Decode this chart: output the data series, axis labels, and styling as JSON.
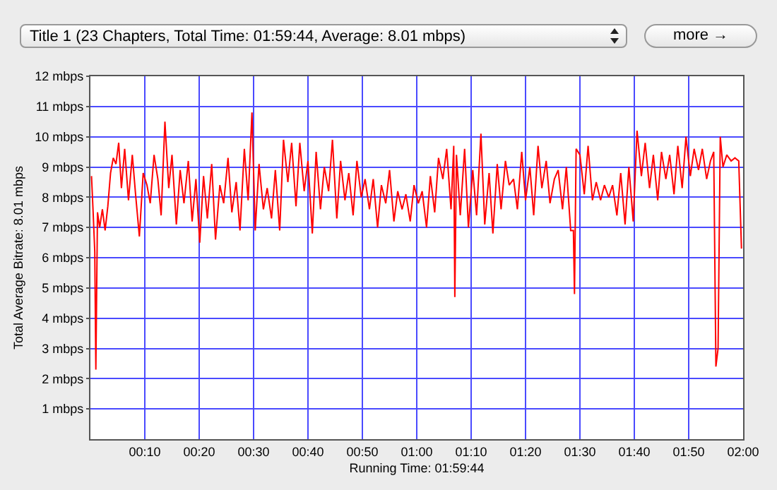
{
  "chart_data": {
    "type": "line",
    "title": "Title 1 (23 Chapters, Total Time: 01:59:44, Average: 8.01 mbps)",
    "annotations": [
      "more →"
    ],
    "xlabel": "Running Time: 01:59:44",
    "ylabel": "Total Average Bitrate: 8.01 mbps",
    "xlim": [
      0,
      120
    ],
    "ylim": [
      0,
      12
    ],
    "xticks": [
      {
        "value": 10,
        "label": "00:10"
      },
      {
        "value": 20,
        "label": "00:20"
      },
      {
        "value": 30,
        "label": "00:30"
      },
      {
        "value": 40,
        "label": "00:40"
      },
      {
        "value": 50,
        "label": "00:50"
      },
      {
        "value": 60,
        "label": "01:00"
      },
      {
        "value": 70,
        "label": "01:10"
      },
      {
        "value": 80,
        "label": "01:20"
      },
      {
        "value": 90,
        "label": "01:30"
      },
      {
        "value": 100,
        "label": "01:40"
      },
      {
        "value": 110,
        "label": "01:50"
      },
      {
        "value": 120,
        "label": "02:00"
      }
    ],
    "yticks": [
      {
        "value": 1,
        "label": "1 mbps"
      },
      {
        "value": 2,
        "label": "2 mbps"
      },
      {
        "value": 3,
        "label": "3 mbps"
      },
      {
        "value": 4,
        "label": "4 mbps"
      },
      {
        "value": 5,
        "label": "5 mbps"
      },
      {
        "value": 6,
        "label": "6 mbps"
      },
      {
        "value": 7,
        "label": "7 mbps"
      },
      {
        "value": 8,
        "label": "8 mbps"
      },
      {
        "value": 9,
        "label": "9 mbps"
      },
      {
        "value": 10,
        "label": "10 mbps"
      },
      {
        "value": 11,
        "label": "11 mbps"
      },
      {
        "value": 12,
        "label": "12 mbps"
      }
    ],
    "grid": true,
    "marker": "none",
    "line_style": "solid",
    "series": [
      {
        "color": "#ff0000",
        "x": [
          0.2,
          0.5,
          0.8,
          1.0,
          1.3,
          1.7,
          2.2,
          2.7,
          3.2,
          3.7,
          4.2,
          4.7,
          5.2,
          5.7,
          6.3,
          7.0,
          7.7,
          8.3,
          9.0,
          9.7,
          10.4,
          11.0,
          11.7,
          12.4,
          13.0,
          13.7,
          14.4,
          15.0,
          15.8,
          16.5,
          17.2,
          18.0,
          18.7,
          19.4,
          20.1,
          20.8,
          21.5,
          22.3,
          23.0,
          23.8,
          24.5,
          25.3,
          26.0,
          26.8,
          27.5,
          28.3,
          29.0,
          29.7,
          30.3,
          31.0,
          31.8,
          32.5,
          33.3,
          34.0,
          34.8,
          35.5,
          36.3,
          37.0,
          37.8,
          38.5,
          39.3,
          40.0,
          40.8,
          41.5,
          42.3,
          43.0,
          43.8,
          44.5,
          45.3,
          46.0,
          46.8,
          47.5,
          48.3,
          49.0,
          49.8,
          50.5,
          51.3,
          52.0,
          52.8,
          53.5,
          54.3,
          55.0,
          55.8,
          56.5,
          57.3,
          58.0,
          58.8,
          59.5,
          60.3,
          61.0,
          61.8,
          62.5,
          63.3,
          64.0,
          64.8,
          65.5,
          66.3,
          66.8,
          67.0,
          67.3,
          68.0,
          68.8,
          69.5,
          70.3,
          71.0,
          71.8,
          72.5,
          73.3,
          74.0,
          74.8,
          75.5,
          76.3,
          77.0,
          77.8,
          78.5,
          79.3,
          80.0,
          80.8,
          81.5,
          82.3,
          83.0,
          83.8,
          84.5,
          85.3,
          86.0,
          86.8,
          87.5,
          88.3,
          88.8,
          89.0,
          89.3,
          90.0,
          90.8,
          91.5,
          92.3,
          93.0,
          93.8,
          94.5,
          95.3,
          96.0,
          96.8,
          97.5,
          98.3,
          99.0,
          99.8,
          100.5,
          101.3,
          102.0,
          102.8,
          103.5,
          104.3,
          105.0,
          105.8,
          106.5,
          107.3,
          108.0,
          108.8,
          109.5,
          110.3,
          111.0,
          111.8,
          112.5,
          113.3,
          114.0,
          114.6,
          115.0,
          115.4,
          115.8,
          116.3,
          117.0,
          117.8,
          118.5,
          119.2,
          119.7
        ],
        "values": [
          8.7,
          7.5,
          6.2,
          2.3,
          7.5,
          7.0,
          7.6,
          6.9,
          7.7,
          8.8,
          9.3,
          9.1,
          9.8,
          8.3,
          9.6,
          7.9,
          9.4,
          8.1,
          6.7,
          8.8,
          8.4,
          7.8,
          9.4,
          8.6,
          7.4,
          10.5,
          8.3,
          9.4,
          7.1,
          8.9,
          7.8,
          9.2,
          7.2,
          8.6,
          6.5,
          8.7,
          7.3,
          9.1,
          6.6,
          8.4,
          7.8,
          9.3,
          7.5,
          8.5,
          6.9,
          9.6,
          7.9,
          10.8,
          6.9,
          9.1,
          7.6,
          8.3,
          7.3,
          8.9,
          6.9,
          9.9,
          8.5,
          9.8,
          7.7,
          9.8,
          8.2,
          9.2,
          6.8,
          9.5,
          7.6,
          9.0,
          8.2,
          9.9,
          7.3,
          9.2,
          7.9,
          8.8,
          7.4,
          9.2,
          8.0,
          8.6,
          7.6,
          8.6,
          7.0,
          8.4,
          7.8,
          8.9,
          7.2,
          8.2,
          7.6,
          8.1,
          7.2,
          8.4,
          7.8,
          8.2,
          7.0,
          8.7,
          7.5,
          9.3,
          8.6,
          9.6,
          7.6,
          9.7,
          4.7,
          9.4,
          7.4,
          9.6,
          7.0,
          8.9,
          7.4,
          10.1,
          7.1,
          8.8,
          6.8,
          9.1,
          7.6,
          9.2,
          8.4,
          8.6,
          7.6,
          9.5,
          7.9,
          9.0,
          7.4,
          9.7,
          8.3,
          9.2,
          7.8,
          8.6,
          8.9,
          7.6,
          9.0,
          6.9,
          6.9,
          4.8,
          9.6,
          9.4,
          8.1,
          9.7,
          7.9,
          8.5,
          7.9,
          8.4,
          8.0,
          8.4,
          7.4,
          8.8,
          7.1,
          9.0,
          7.2,
          10.2,
          8.7,
          9.8,
          8.3,
          9.4,
          7.9,
          9.5,
          8.6,
          9.4,
          8.1,
          9.7,
          8.3,
          10.0,
          8.7,
          9.6,
          8.9,
          9.6,
          8.6,
          9.2,
          9.5,
          2.4,
          3.0,
          10.0,
          9.0,
          9.4,
          9.2,
          9.3,
          9.2,
          6.3
        ]
      }
    ]
  }
}
